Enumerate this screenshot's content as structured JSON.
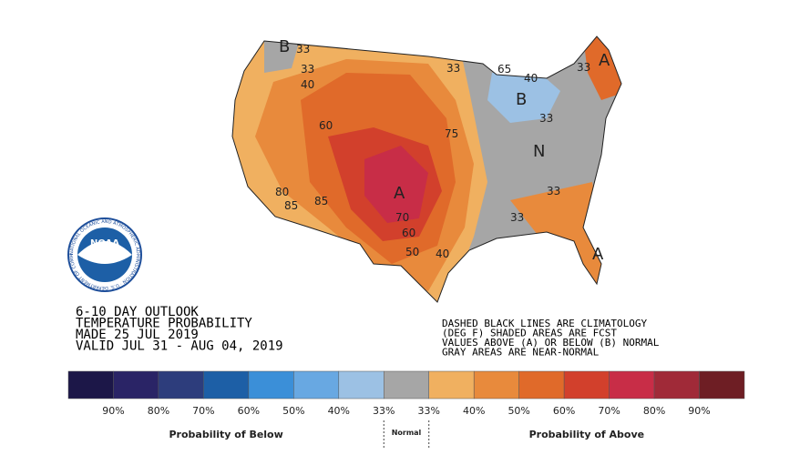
{
  "map": {
    "labels": [
      "B",
      "33",
      "33",
      "40",
      "33",
      "65",
      "40",
      "B",
      "33",
      "33",
      "A",
      "N",
      "33",
      "33",
      "A",
      "75",
      "A",
      "70",
      "60",
      "50",
      "40",
      "80",
      "85",
      "85",
      "60"
    ]
  },
  "logo": {
    "text": "NOAA",
    "ring_text": "NATIONAL OCEANIC AND ATMOSPHERIC ADMINISTRATION · U.S. DEPARTMENT OF COMMERCE"
  },
  "outlook": {
    "title_lines": [
      "6-10 DAY OUTLOOK",
      "TEMPERATURE PROBABILITY",
      "MADE  25 JUL 2019",
      "VALID  JUL 31 - AUG 04, 2019"
    ]
  },
  "notes": [
    "DASHED BLACK LINES ARE CLIMATOLOGY",
    "(DEG F) SHADED AREAS ARE FCST",
    "VALUES ABOVE (A) OR BELOW (B) NORMAL",
    "GRAY AREAS ARE NEAR-NORMAL"
  ],
  "legend": {
    "colors": [
      "#1c1748",
      "#2a2466",
      "#2d3d7c",
      "#1d5fa6",
      "#3b8fd8",
      "#68a8e2",
      "#9cc1e4",
      "#a6a6a6",
      "#f0b060",
      "#e88a3c",
      "#e06a2a",
      "#d2402c",
      "#c82d47",
      "#a02a38",
      "#6e1e24"
    ],
    "tick_labels": [
      "90%",
      "80%",
      "70%",
      "60%",
      "50%",
      "40%",
      "33%",
      "33%",
      "40%",
      "50%",
      "60%",
      "70%",
      "80%",
      "90%"
    ],
    "below_label": "Probability of Below",
    "normal_label": "Normal",
    "above_label": "Probability of Above"
  }
}
